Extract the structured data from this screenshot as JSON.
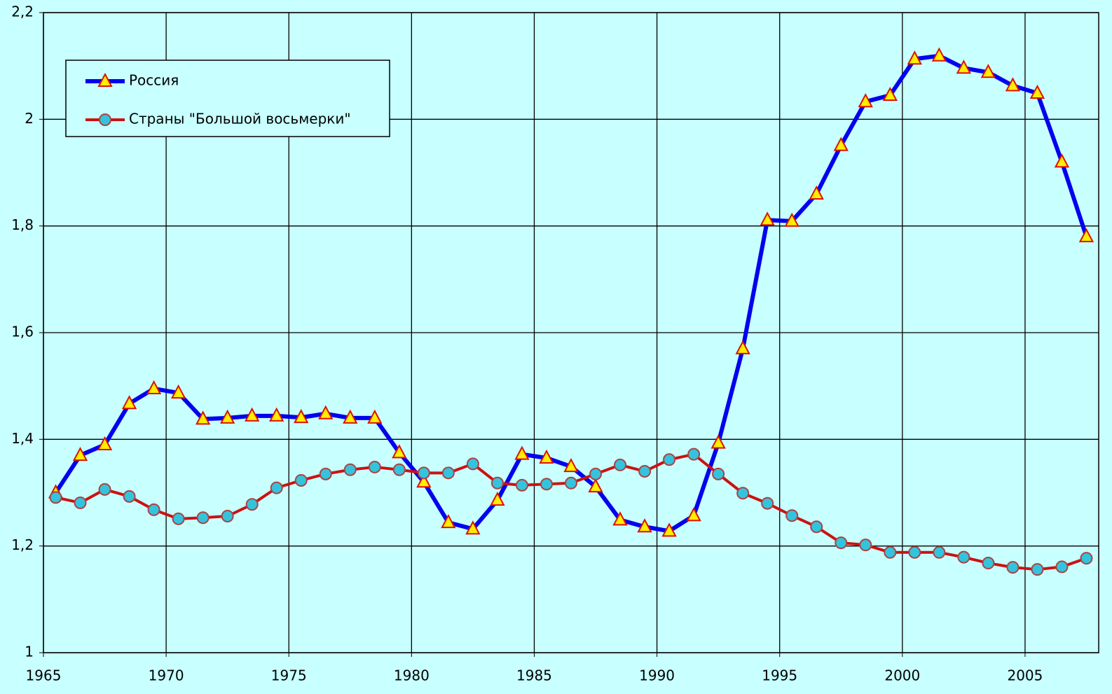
{
  "chart_data": {
    "type": "line",
    "x": [
      1965.5,
      1966.5,
      1967.5,
      1968.5,
      1969.5,
      1970.5,
      1971.5,
      1972.5,
      1973.5,
      1974.5,
      1975.5,
      1976.5,
      1977.5,
      1978.5,
      1979.5,
      1980.5,
      1981.5,
      1982.5,
      1983.5,
      1984.5,
      1985.5,
      1986.5,
      1987.5,
      1988.5,
      1989.5,
      1990.5,
      1991.5,
      1992.5,
      1993.5,
      1994.5,
      1995.5,
      1996.5,
      1997.5,
      1998.5,
      1999.5,
      2000.5,
      2001.5,
      2002.5,
      2003.5,
      2004.5,
      2005.5,
      2006.5,
      2007.5
    ],
    "series": [
      {
        "name": "Россия",
        "color": "#0000ee",
        "marker": "triangle",
        "values": [
          1.3,
          1.37,
          1.39,
          1.467,
          1.495,
          1.487,
          1.438,
          1.44,
          1.444,
          1.444,
          1.441,
          1.448,
          1.44,
          1.44,
          1.375,
          1.32,
          1.244,
          1.232,
          1.286,
          1.372,
          1.365,
          1.349,
          1.311,
          1.249,
          1.236,
          1.228,
          1.257,
          1.393,
          1.57,
          1.811,
          1.809,
          1.86,
          1.951,
          2.033,
          2.045,
          2.113,
          2.119,
          2.096,
          2.088,
          2.063,
          2.049,
          1.92,
          1.78
        ]
      },
      {
        "name": "Страны \"Большой восьмерки\"",
        "color": "#cc1111",
        "marker": "circle",
        "values": [
          1.291,
          1.281,
          1.306,
          1.293,
          1.268,
          1.251,
          1.253,
          1.256,
          1.278,
          1.309,
          1.323,
          1.335,
          1.343,
          1.348,
          1.343,
          1.337,
          1.337,
          1.354,
          1.318,
          1.314,
          1.316,
          1.318,
          1.335,
          1.352,
          1.34,
          1.362,
          1.372,
          1.335,
          1.299,
          1.28,
          1.257,
          1.236,
          1.206,
          1.202,
          1.188,
          1.188,
          1.188,
          1.179,
          1.168,
          1.16,
          1.156,
          1.161,
          1.177
        ]
      }
    ],
    "xlim": [
      1965,
      2008
    ],
    "xticks": [
      1965,
      1970,
      1975,
      1980,
      1985,
      1990,
      1995,
      2000,
      2005
    ],
    "ylim": [
      1,
      2.2
    ],
    "yticks": [
      1,
      {
        "value": 1.2,
        "label": "1,2"
      },
      {
        "value": 1.4,
        "label": "1,4"
      },
      {
        "value": 1.6,
        "label": "1,6"
      },
      {
        "value": 1.8,
        "label": "1,8"
      },
      2,
      {
        "value": 2.2,
        "label": "2,2"
      }
    ],
    "grid": true,
    "legend": "upper left"
  }
}
